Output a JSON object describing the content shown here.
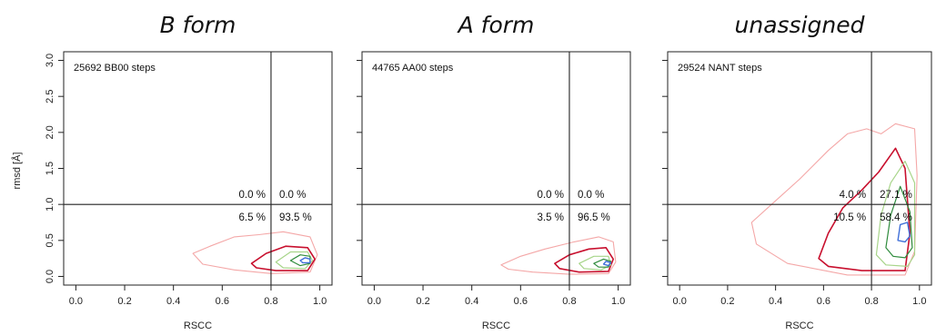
{
  "chart_data": [
    {
      "type": "contour",
      "title": "B form",
      "steps_label": "25692 BB00 steps",
      "xlabel": "RSCC",
      "ylabel": "rmsd [Å]",
      "xlim": [
        0.0,
        1.0
      ],
      "ylim": [
        0.0,
        3.0
      ],
      "xticks": [
        "0.0",
        "0.2",
        "0.4",
        "0.6",
        "0.8",
        "1.0"
      ],
      "yticks": [
        "0.0",
        "0.5",
        "1.0",
        "1.5",
        "2.0",
        "2.5",
        "3.0"
      ],
      "ref_lines": {
        "x": 0.8,
        "y": 1.0
      },
      "quadrants": {
        "upper_left": "0.0 %",
        "upper_right": "0.0 %",
        "lower_left": "6.5 %",
        "lower_right": "93.5 %"
      },
      "density_peak": {
        "rscc": 0.95,
        "rmsd": 0.22
      },
      "contour_colors": [
        "#f4a7a7",
        "#c8102e",
        "#a8d58a",
        "#2e8b3c",
        "#3f6fd8"
      ]
    },
    {
      "type": "contour",
      "title": "A form",
      "steps_label": "44765 AA00 steps",
      "xlabel": "RSCC",
      "ylabel": "",
      "xlim": [
        0.0,
        1.0
      ],
      "ylim": [
        0.0,
        3.0
      ],
      "xticks": [
        "0.0",
        "0.2",
        "0.4",
        "0.6",
        "0.8",
        "1.0"
      ],
      "yticks": [
        "0.0",
        "0.5",
        "1.0",
        "1.5",
        "2.0",
        "2.5",
        "3.0"
      ],
      "ref_lines": {
        "x": 0.8,
        "y": 1.0
      },
      "quadrants": {
        "upper_left": "0.0 %",
        "upper_right": "0.0 %",
        "lower_left": "3.5 %",
        "lower_right": "96.5 %"
      },
      "density_peak": {
        "rscc": 0.96,
        "rmsd": 0.18
      },
      "contour_colors": [
        "#f4a7a7",
        "#c8102e",
        "#a8d58a",
        "#2e8b3c",
        "#3f6fd8"
      ]
    },
    {
      "type": "contour",
      "title": "unassigned",
      "steps_label": "29524 NANT steps",
      "xlabel": "RSCC",
      "ylabel": "",
      "xlim": [
        0.0,
        1.0
      ],
      "ylim": [
        0.0,
        3.0
      ],
      "xticks": [
        "0.0",
        "0.2",
        "0.4",
        "0.6",
        "0.8",
        "1.0"
      ],
      "yticks": [
        "0.0",
        "0.5",
        "1.0",
        "1.5",
        "2.0",
        "2.5",
        "3.0"
      ],
      "ref_lines": {
        "x": 0.8,
        "y": 1.0
      },
      "quadrants": {
        "upper_left": "4.0 %",
        "upper_right": "27.1 %",
        "lower_left": "10.5 %",
        "lower_right": "58.4 %"
      },
      "density_peak": {
        "rscc": 0.94,
        "rmsd": 0.62
      },
      "contour_colors": [
        "#f4a7a7",
        "#c8102e",
        "#a8d58a",
        "#2e8b3c",
        "#3f6fd8"
      ]
    }
  ]
}
